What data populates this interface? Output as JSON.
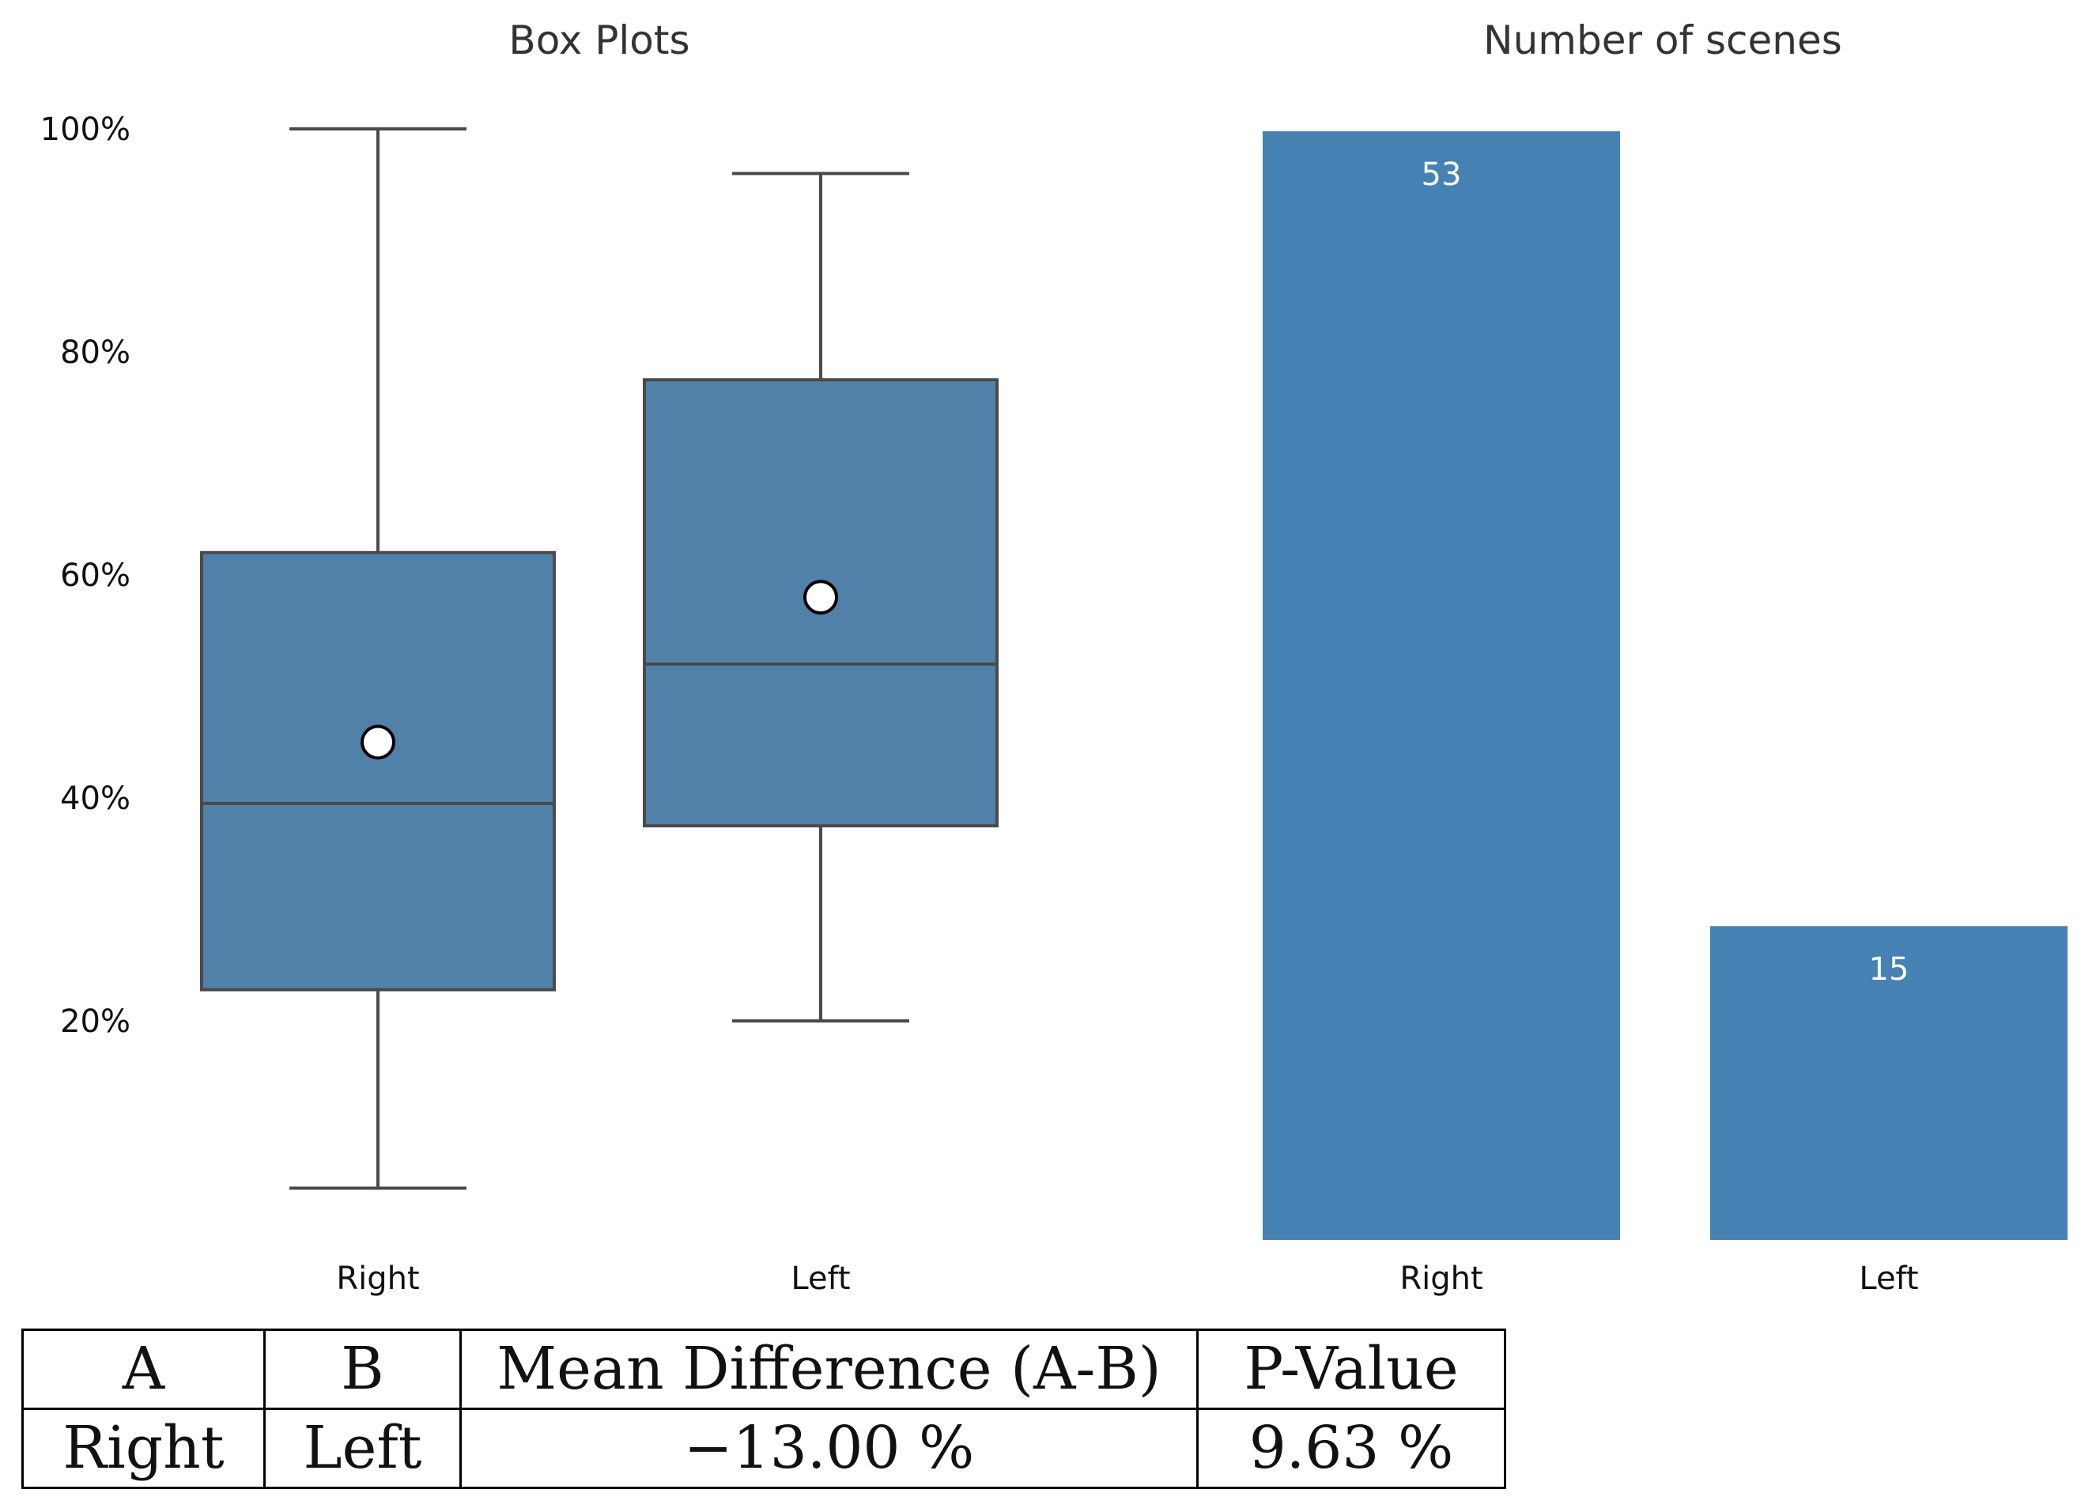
{
  "chart_data": [
    {
      "type": "box",
      "title": "Box Plots",
      "categories": [
        "Right",
        "Left"
      ],
      "y_tick_labels": [
        "20%",
        "40%",
        "60%",
        "80%",
        "100%"
      ],
      "y_ticks": [
        20,
        40,
        60,
        80,
        100
      ],
      "ylim": [
        0,
        100
      ],
      "series": [
        {
          "name": "Right",
          "whisker_low": 5,
          "q1": 22.8,
          "median": 39.5,
          "q3": 62,
          "whisker_high": 100,
          "mean": 45
        },
        {
          "name": "Left",
          "whisker_low": 20,
          "q1": 37.5,
          "median": 52,
          "q3": 77.5,
          "whisker_high": 96,
          "mean": 58
        }
      ],
      "box_color": "#5181a8",
      "line_color": "#4a4a4a"
    },
    {
      "type": "bar",
      "title": "Number of scenes",
      "categories": [
        "Right",
        "Left"
      ],
      "values": [
        53,
        15
      ],
      "value_labels": [
        "53",
        "15"
      ],
      "ylim": [
        0,
        53
      ],
      "bar_color": "#4682b4"
    }
  ],
  "table": {
    "headers": [
      "A",
      "B",
      "Mean Difference (A-B)",
      "P-Value"
    ],
    "rows": [
      [
        "Right",
        "Left",
        "−13.00 %",
        "9.63 %"
      ]
    ]
  }
}
